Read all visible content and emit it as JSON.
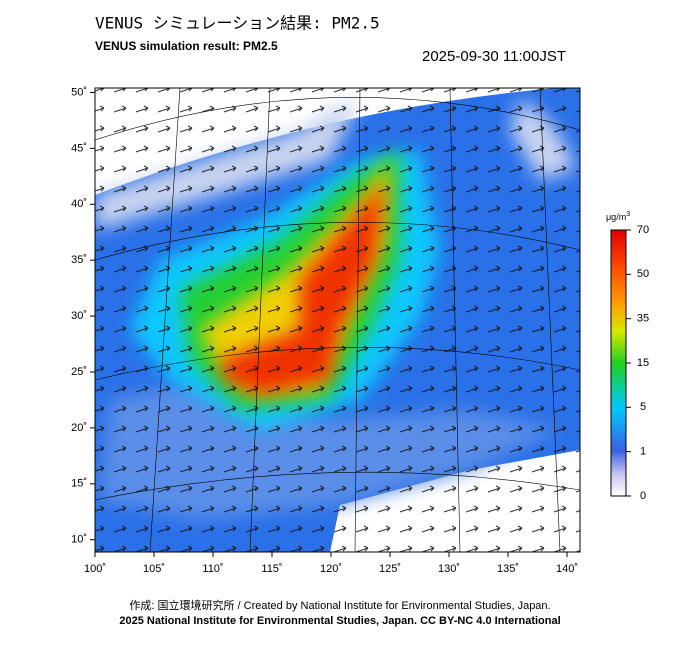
{
  "header": {
    "title_ja": "VENUS シミュレーション結果: PM2.5",
    "title_en": "VENUS simulation result: PM2.5",
    "timestamp": "2025-09-30 11:00JST"
  },
  "map": {
    "xlim": [
      100,
      141.1
    ],
    "ylim": [
      8.9,
      50.4
    ],
    "xticks": [
      {
        "value": 100,
        "label": "100˚"
      },
      {
        "value": 105,
        "label": "105˚"
      },
      {
        "value": 110,
        "label": "110˚"
      },
      {
        "value": 115,
        "label": "115˚"
      },
      {
        "value": 120,
        "label": "120˚"
      },
      {
        "value": 125,
        "label": "125˚"
      },
      {
        "value": 130,
        "label": "130˚"
      },
      {
        "value": 135,
        "label": "135˚"
      },
      {
        "value": 140,
        "label": "140˚"
      }
    ],
    "yticks": [
      {
        "value": 10,
        "label": "10˚"
      },
      {
        "value": 15,
        "label": "15˚"
      },
      {
        "value": 20,
        "label": "20˚"
      },
      {
        "value": 25,
        "label": "25˚"
      },
      {
        "value": 30,
        "label": "30˚"
      },
      {
        "value": 35,
        "label": "35˚"
      },
      {
        "value": 40,
        "label": "40˚"
      },
      {
        "value": 45,
        "label": "45˚"
      },
      {
        "value": 50,
        "label": "50˚"
      }
    ]
  },
  "colorbar": {
    "unit": "μg/m",
    "unit_sup": "3",
    "levels": [
      0,
      1,
      5,
      15,
      35,
      50,
      70
    ]
  },
  "footer": {
    "credit": "作成: 国立環境研究所 / Created by National Institute for Environmental Studies, Japan.",
    "copyright": "2025 National Institute for Environmental Studies, Japan. CC BY-NC 4.0 International"
  }
}
